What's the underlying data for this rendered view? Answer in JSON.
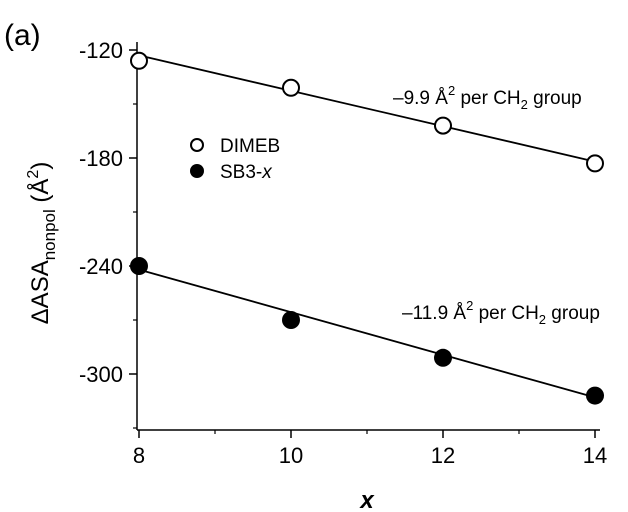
{
  "chart_data": {
    "type": "scatter",
    "panel_label": "(a)",
    "xlabel": "x",
    "ylabel": {
      "main": "ΔASA",
      "sub": "nonpol",
      "unit_open": " (Å",
      "unit_sup": "2",
      "unit_close": ")"
    },
    "xlim": [
      8,
      14.2
    ],
    "ylim": [
      -328,
      -102
    ],
    "xticks": [
      8,
      10,
      12,
      14
    ],
    "yticks": [
      -120,
      -180,
      -240,
      -300
    ],
    "xtick_labels": [
      "8",
      "10",
      "12",
      "14"
    ],
    "ytick_labels": [
      "-120",
      "-180",
      "-240",
      "-300"
    ],
    "legend_position": "upper-left",
    "series": [
      {
        "name": "DIMEB",
        "marker": "open-circle",
        "x": [
          8,
          10,
          12,
          14
        ],
        "y": [
          -126,
          -141,
          -162,
          -183
        ],
        "fit": {
          "x": [
            8,
            14
          ],
          "y": [
            -123,
            -182
          ]
        },
        "annotation": {
          "pre": "–9.9 Å",
          "sup": "2",
          "mid": " per CH",
          "sub": "2",
          "post": " group"
        }
      },
      {
        "name": "SB3-x",
        "name_prefix": "SB3-",
        "name_var": "x",
        "marker": "filled-circle",
        "x": [
          8,
          10,
          12,
          14
        ],
        "y": [
          -240,
          -270,
          -291,
          -312
        ],
        "fit": {
          "x": [
            8,
            14
          ],
          "y": [
            -242,
            -313
          ]
        },
        "annotation": {
          "pre": "–11.9 Å",
          "sup": "2",
          "mid": " per CH",
          "sub": "2",
          "post": " group"
        }
      }
    ]
  }
}
